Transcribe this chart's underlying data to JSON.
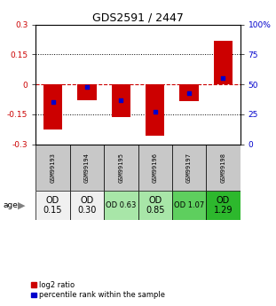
{
  "title": "GDS2591 / 2447",
  "samples": [
    "GSM99193",
    "GSM99194",
    "GSM99195",
    "GSM99196",
    "GSM99197",
    "GSM99198"
  ],
  "log2_ratios": [
    -0.225,
    -0.08,
    -0.165,
    -0.255,
    -0.085,
    0.22
  ],
  "percentile_ranks": [
    35,
    48,
    37,
    27,
    43,
    55
  ],
  "od_values": [
    "OD\n0.15",
    "OD\n0.30",
    "OD 0.63",
    "OD\n0.85",
    "OD 1.07",
    "OD\n1.29"
  ],
  "od_colors": [
    "#f0f0f0",
    "#f0f0f0",
    "#a8e6a8",
    "#a8e6a8",
    "#5ecf5e",
    "#2db82d"
  ],
  "od_fontsize": [
    7,
    7,
    6,
    7,
    6,
    7
  ],
  "bar_width": 0.55,
  "ylim": [
    -0.3,
    0.3
  ],
  "yticks_left": [
    -0.3,
    -0.15,
    0,
    0.15,
    0.3
  ],
  "dotted_lines": [
    -0.15,
    0.15
  ],
  "zero_line_color": "#cc0000",
  "bar_color": "#cc0000",
  "dot_color": "#0000cc",
  "dot_size": 12,
  "title_fontsize": 9,
  "legend_items": [
    "log2 ratio",
    "percentile rank within the sample"
  ],
  "legend_colors": [
    "#cc0000",
    "#0000cc"
  ],
  "sample_bg": "#c8c8c8"
}
